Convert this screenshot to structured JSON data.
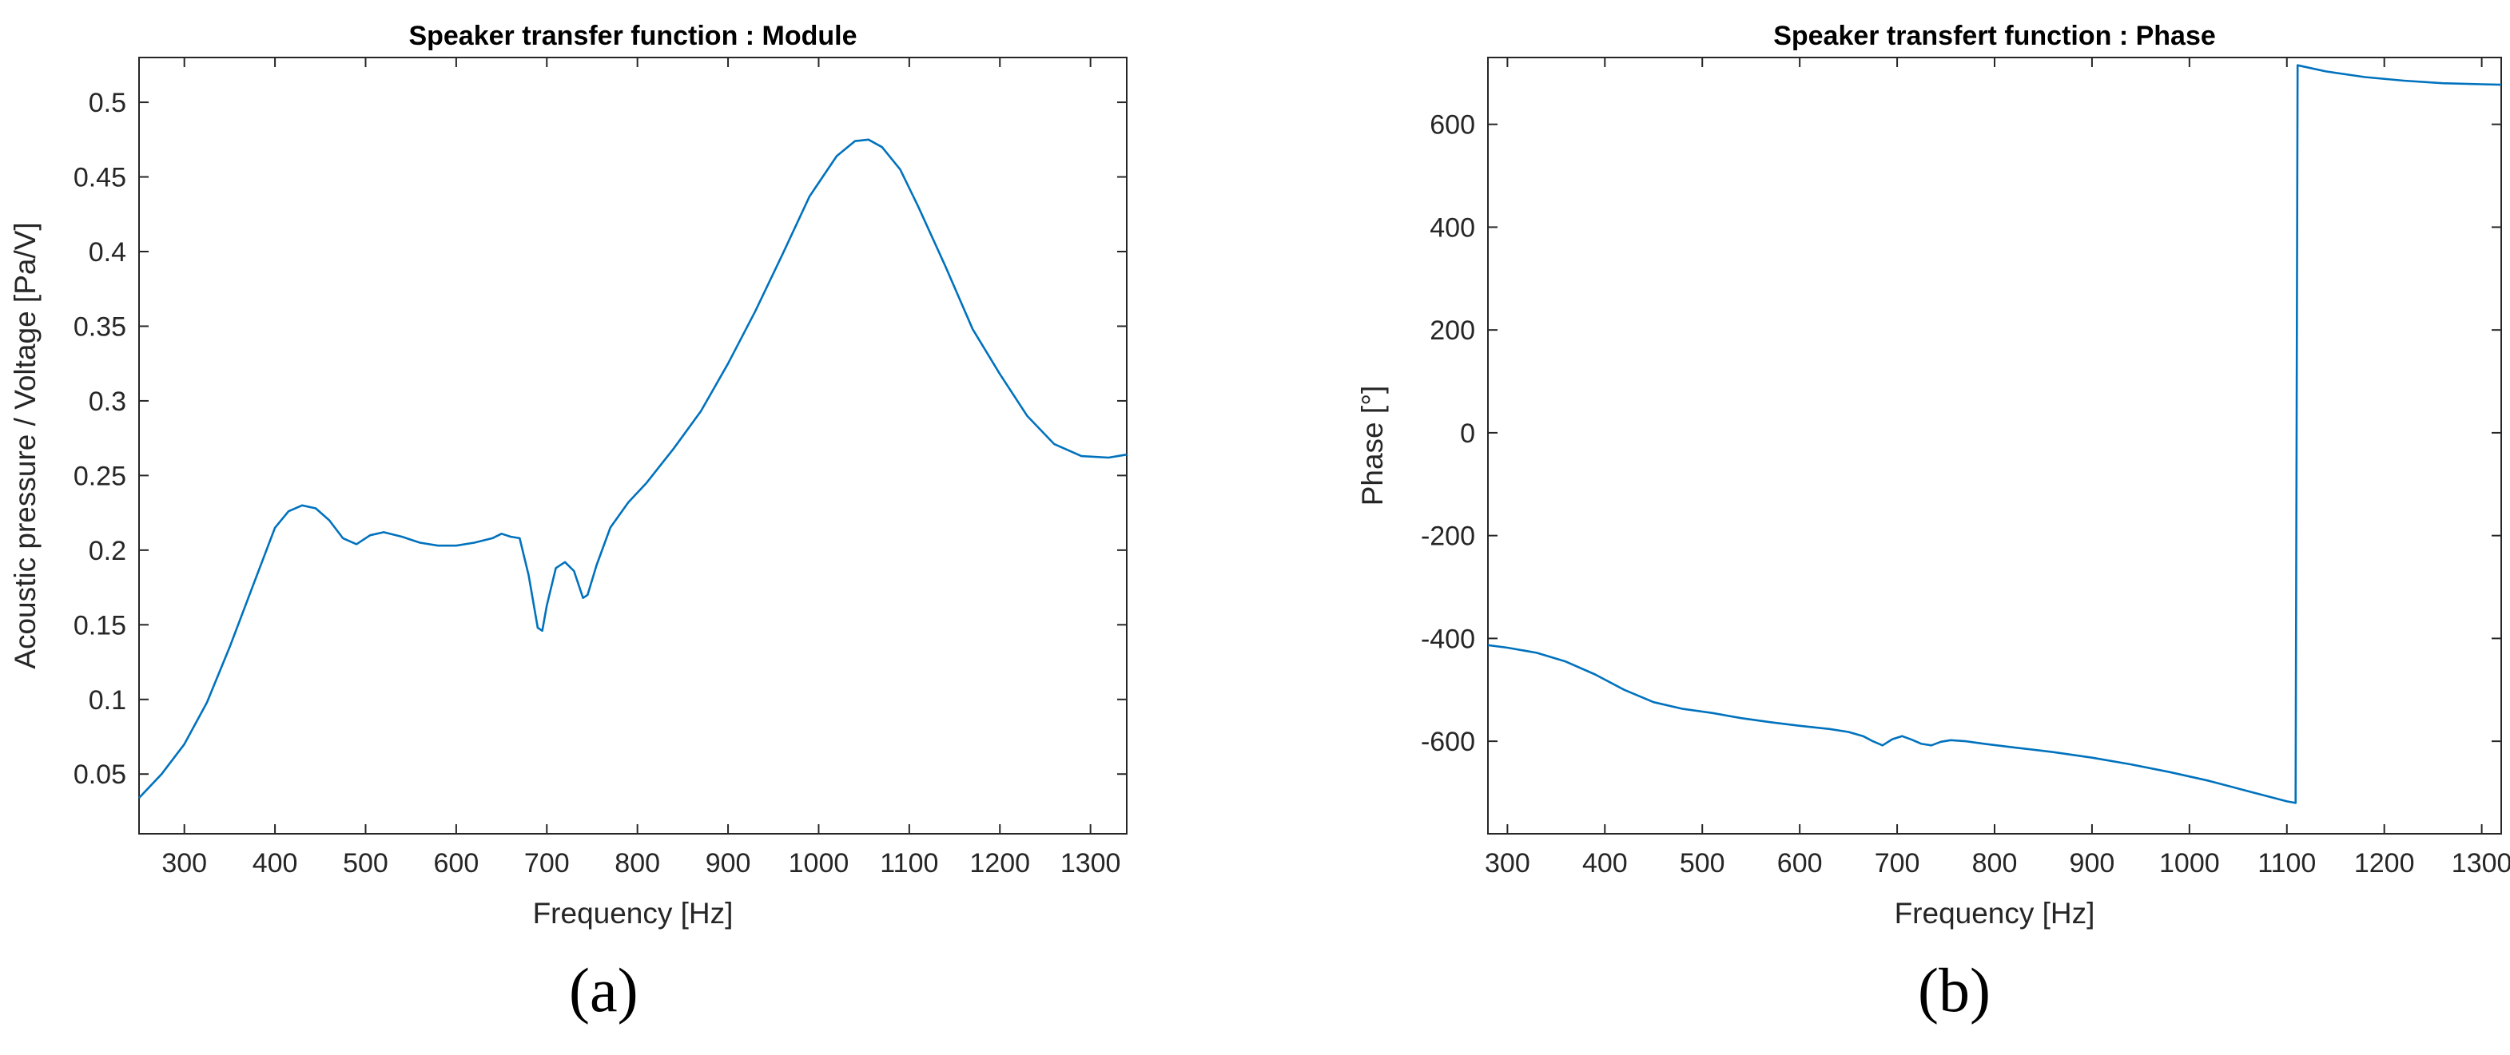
{
  "chart_data": [
    {
      "type": "line",
      "panel_label": "(a)",
      "title": "Speaker transfer function : Module",
      "xlabel": "Frequency [Hz]",
      "ylabel": "Acoustic pressure / Voltage [Pa/V]",
      "xlim": [
        250,
        1340
      ],
      "ylim": [
        0.01,
        0.53
      ],
      "xticks": [
        300,
        400,
        500,
        600,
        700,
        800,
        900,
        1000,
        1100,
        1200,
        1300
      ],
      "yticks": [
        0.05,
        0.1,
        0.15,
        0.2,
        0.25,
        0.3,
        0.35,
        0.4,
        0.45,
        0.5
      ],
      "xtick_labels": [
        "300",
        "400",
        "500",
        "600",
        "700",
        "800",
        "900",
        "1000",
        "1100",
        "1200",
        "1300"
      ],
      "ytick_labels": [
        "0.05",
        "0.1",
        "0.15",
        "0.2",
        "0.25",
        "0.3",
        "0.35",
        "0.4",
        "0.45",
        "0.5"
      ],
      "grid": false,
      "line_color": "#0072BD",
      "series": [
        {
          "x": [
            250,
            275,
            300,
            325,
            350,
            375,
            400,
            415,
            430,
            445,
            460,
            475,
            490,
            505,
            520,
            540,
            560,
            580,
            600,
            620,
            640,
            650,
            660,
            670,
            680,
            690,
            695,
            700,
            710,
            720,
            730,
            740,
            745,
            755,
            770,
            790,
            810,
            840,
            870,
            900,
            930,
            960,
            990,
            1020,
            1040,
            1055,
            1070,
            1090,
            1110,
            1140,
            1170,
            1200,
            1230,
            1260,
            1290,
            1320,
            1340
          ],
          "y": [
            0.034,
            0.05,
            0.07,
            0.098,
            0.135,
            0.175,
            0.215,
            0.226,
            0.23,
            0.228,
            0.22,
            0.208,
            0.204,
            0.21,
            0.212,
            0.209,
            0.205,
            0.203,
            0.203,
            0.205,
            0.208,
            0.211,
            0.209,
            0.208,
            0.183,
            0.148,
            0.146,
            0.163,
            0.188,
            0.192,
            0.186,
            0.168,
            0.17,
            0.19,
            0.215,
            0.232,
            0.245,
            0.268,
            0.293,
            0.325,
            0.36,
            0.398,
            0.437,
            0.464,
            0.474,
            0.475,
            0.47,
            0.455,
            0.43,
            0.39,
            0.348,
            0.318,
            0.29,
            0.271,
            0.263,
            0.262,
            0.264
          ]
        }
      ]
    },
    {
      "type": "line",
      "panel_label": "(b)",
      "title": "Speaker transfert function : Phase",
      "xlabel": "Frequency [Hz]",
      "ylabel": "Phase [°]",
      "xlim": [
        280,
        1320
      ],
      "ylim": [
        -780,
        730
      ],
      "xticks": [
        300,
        400,
        500,
        600,
        700,
        800,
        900,
        1000,
        1100,
        1200,
        1300
      ],
      "yticks": [
        -600,
        -400,
        -200,
        0,
        200,
        400,
        600
      ],
      "xtick_labels": [
        "300",
        "400",
        "500",
        "600",
        "700",
        "800",
        "900",
        "1000",
        "1100",
        "1200",
        "1300"
      ],
      "ytick_labels": [
        "-600",
        "-400",
        "-200",
        "0",
        "200",
        "400",
        "600"
      ],
      "grid": false,
      "line_color": "#0072BD",
      "series": [
        {
          "x": [
            280,
            300,
            330,
            360,
            390,
            420,
            450,
            480,
            510,
            540,
            570,
            600,
            630,
            650,
            665,
            675,
            685,
            695,
            705,
            715,
            725,
            735,
            745,
            755,
            770,
            790,
            820,
            860,
            900,
            940,
            980,
            1020,
            1060,
            1100,
            1109,
            1111,
            1140,
            1180,
            1220,
            1260,
            1300,
            1320
          ],
          "y": [
            -413,
            -418,
            -428,
            -445,
            -470,
            -500,
            -524,
            -537,
            -545,
            -555,
            -563,
            -570,
            -576,
            -582,
            -590,
            -600,
            -608,
            -596,
            -590,
            -597,
            -605,
            -608,
            -601,
            -598,
            -600,
            -605,
            -612,
            -621,
            -632,
            -645,
            -660,
            -677,
            -697,
            -717,
            -720,
            715,
            703,
            692,
            685,
            680,
            678,
            677
          ]
        }
      ]
    }
  ]
}
